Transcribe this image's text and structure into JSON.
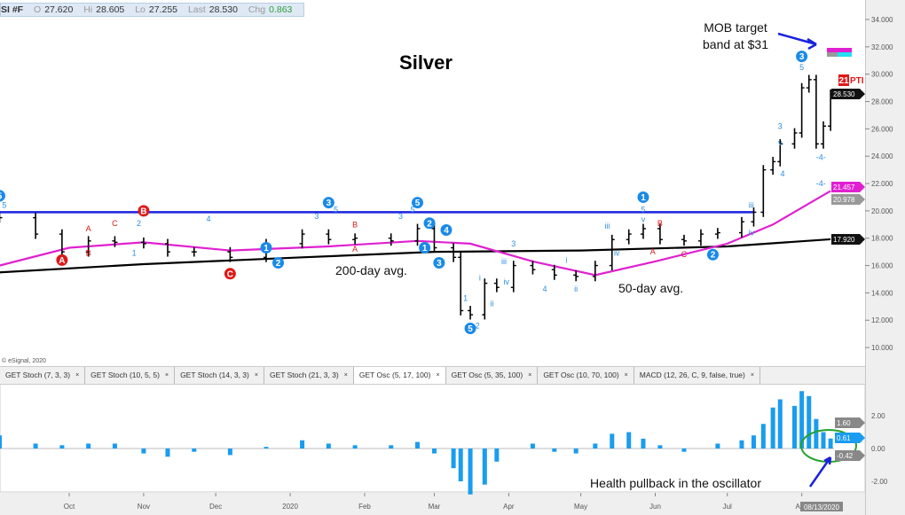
{
  "header": {
    "symbol": "SI #F",
    "open_label": "O",
    "open": "27.620",
    "high_label": "Hi",
    "high": "28.605",
    "low_label": "Lo",
    "low": "27.255",
    "last_label": "Last",
    "last": "28.530",
    "chg_label": "Chg",
    "chg": "0.863",
    "chg_color": "#2e9e3a"
  },
  "tabs": [
    {
      "label": "GET Stoch (7, 3, 3)"
    },
    {
      "label": "GET Stoch (10, 5, 5)"
    },
    {
      "label": "GET Stoch (14, 3, 3)"
    },
    {
      "label": "GET Stoch (21, 3, 3)"
    },
    {
      "label": "GET Osc (5, 17, 100)",
      "active": true
    },
    {
      "label": "GET Osc (5, 35, 100)"
    },
    {
      "label": "GET Osc (10, 70, 100)"
    },
    {
      "label": "MACD (12, 26, C, 9, false, true)"
    }
  ],
  "tab_close": "×",
  "chart_data": [
    {
      "type": "bar",
      "subtype": "ohlc",
      "title": "Silver",
      "ylim": [
        10,
        34
      ],
      "grid": false,
      "y_ticks": [
        "34.000",
        "32.000",
        "30.000",
        "28.000",
        "26.000",
        "24.000",
        "22.000",
        "20.000",
        "18.000",
        "16.000",
        "14.000",
        "12.000",
        "10.000"
      ],
      "x_ticks": [
        {
          "label": "Oct",
          "date": "2019-10-01"
        },
        {
          "label": "Nov",
          "date": "2019-11-01"
        },
        {
          "label": "Dec",
          "date": "2019-12-01"
        },
        {
          "label": "2020",
          "date": "2020-01-01"
        },
        {
          "label": "Feb",
          "date": "2020-02-01"
        },
        {
          "label": "Mar",
          "date": "2020-03-01"
        },
        {
          "label": "Apr",
          "date": "2020-04-01"
        },
        {
          "label": "May",
          "date": "2020-05-01"
        },
        {
          "label": "Jun",
          "date": "2020-06-01"
        },
        {
          "label": "Jul",
          "date": "2020-07-01"
        },
        {
          "label": "Aug",
          "date": "2020-08-01"
        }
      ],
      "last_date_label": "08/13/2020",
      "x": [
        "2019-09-02",
        "2019-09-17",
        "2019-09-28",
        "2019-10-09",
        "2019-10-20",
        "2019-11-01",
        "2019-11-11",
        "2019-11-22",
        "2019-12-07",
        "2019-12-22",
        "2020-01-06",
        "2020-01-17",
        "2020-01-28",
        "2020-02-12",
        "2020-02-23",
        "2020-03-01",
        "2020-03-09",
        "2020-03-12",
        "2020-03-16",
        "2020-03-22",
        "2020-03-27",
        "2020-04-03",
        "2020-04-11",
        "2020-04-20",
        "2020-04-29",
        "2020-05-07",
        "2020-05-14",
        "2020-05-21",
        "2020-05-27",
        "2020-06-03",
        "2020-06-13",
        "2020-06-20",
        "2020-06-27",
        "2020-07-07",
        "2020-07-12",
        "2020-07-16",
        "2020-07-20",
        "2020-07-23",
        "2020-07-29",
        "2020-08-01",
        "2020-08-04",
        "2020-08-07",
        "2020-08-10",
        "2020-08-13"
      ],
      "close": [
        19.5,
        18.3,
        17.0,
        17.8,
        17.7,
        17.6,
        17.0,
        17.0,
        16.6,
        17.6,
        18.3,
        17.9,
        18.0,
        17.8,
        18.7,
        17.3,
        16.6,
        12.7,
        12.4,
        14.7,
        14.4,
        16.0,
        15.7,
        15.3,
        15.2,
        16.0,
        17.9,
        18.3,
        18.7,
        17.9,
        17.8,
        18.3,
        18.4,
        19.2,
        19.9,
        23.0,
        23.6,
        24.9,
        25.7,
        29.0,
        29.6,
        24.9,
        26.2,
        28.53
      ],
      "series": [
        {
          "name": "200-day avg.",
          "color": "#000000",
          "x": [
            "2019-09-02",
            "2019-11-01",
            "2020-01-06",
            "2020-03-01",
            "2020-05-01",
            "2020-07-01",
            "2020-08-13"
          ],
          "values": [
            15.5,
            16.1,
            16.6,
            17.0,
            17.1,
            17.4,
            17.92
          ]
        },
        {
          "name": "50-day avg.",
          "color": "#e020d0",
          "x": [
            "2019-09-02",
            "2019-10-01",
            "2019-11-01",
            "2019-12-07",
            "2020-01-17",
            "2020-02-23",
            "2020-03-16",
            "2020-04-11",
            "2020-05-07",
            "2020-06-01",
            "2020-07-01",
            "2020-07-20",
            "2020-08-13"
          ],
          "values": [
            16.0,
            17.3,
            17.7,
            17.1,
            17.4,
            17.8,
            17.6,
            16.3,
            15.3,
            16.3,
            17.6,
            19.0,
            21.457
          ]
        }
      ],
      "horizontal_line": {
        "value": 19.9,
        "from": "2019-09-02",
        "to": "2020-07-12",
        "color": "#1a22dd"
      },
      "price_tags": [
        {
          "value": "28.530",
          "color": "#111111"
        },
        {
          "value": "21.457",
          "color": "#e020d0"
        },
        {
          "value": "20.978",
          "color": "#999999"
        },
        {
          "value": "17.920",
          "color": "#111111"
        }
      ],
      "wave_labels": [
        {
          "text": "5",
          "date": "2019-09-02",
          "price": 21.1,
          "style": "circle-blue"
        },
        {
          "text": "B",
          "date": "2019-11-01",
          "price": 20.0,
          "style": "circle-red"
        },
        {
          "text": "A",
          "date": "2019-09-28",
          "price": 16.4,
          "style": "circle-red"
        },
        {
          "text": "C",
          "date": "2019-12-07",
          "price": 15.4,
          "style": "circle-red"
        },
        {
          "text": "1",
          "date": "2019-12-22",
          "price": 17.3,
          "style": "circle-blue"
        },
        {
          "text": "2",
          "date": "2019-12-27",
          "price": 16.2,
          "style": "circle-blue"
        },
        {
          "text": "3",
          "date": "2020-01-17",
          "price": 20.6,
          "style": "circle-blue"
        },
        {
          "text": "5",
          "date": "2020-02-23",
          "price": 20.6,
          "style": "circle-blue"
        },
        {
          "text": "2",
          "date": "2020-02-28",
          "price": 19.1,
          "style": "circle-blue"
        },
        {
          "text": "1",
          "date": "2020-02-26",
          "price": 17.3,
          "style": "circle-blue"
        },
        {
          "text": "3",
          "date": "2020-03-03",
          "price": 16.2,
          "style": "circle-blue"
        },
        {
          "text": "4",
          "date": "2020-03-06",
          "price": 18.6,
          "style": "circle-blue"
        },
        {
          "text": "5",
          "date": "2020-03-16",
          "price": 11.4,
          "style": "circle-blue"
        },
        {
          "text": "1",
          "date": "2020-05-27",
          "price": 21.0,
          "style": "circle-blue"
        },
        {
          "text": "2",
          "date": "2020-06-25",
          "price": 16.8,
          "style": "circle-blue"
        },
        {
          "text": "3",
          "date": "2020-08-01",
          "price": 31.3,
          "style": "circle-blue"
        },
        {
          "text": "A",
          "date": "2019-10-09",
          "price": 18.7,
          "style": "text-red"
        },
        {
          "text": "C",
          "date": "2019-10-20",
          "price": 19.1,
          "style": "text-red"
        },
        {
          "text": "B",
          "date": "2019-10-09",
          "price": 16.9,
          "style": "text-red"
        },
        {
          "text": "A",
          "date": "2020-01-28",
          "price": 17.2,
          "style": "text-red"
        },
        {
          "text": "B",
          "date": "2020-01-28",
          "price": 19.0,
          "style": "text-red"
        },
        {
          "text": "B",
          "date": "2020-06-03",
          "price": 19.1,
          "style": "text-red"
        },
        {
          "text": "A",
          "date": "2020-05-31",
          "price": 17.0,
          "style": "text-red"
        },
        {
          "text": "C",
          "date": "2020-06-13",
          "price": 16.8,
          "style": "text-red"
        },
        {
          "text": "1",
          "date": "2019-10-28",
          "price": 16.9,
          "style": "text-blue"
        },
        {
          "text": "2",
          "date": "2019-10-30",
          "price": 19.1,
          "style": "text-blue"
        },
        {
          "text": "4",
          "date": "2019-11-28",
          "price": 19.4,
          "style": "text-blue"
        },
        {
          "text": "3",
          "date": "2020-01-12",
          "price": 19.6,
          "style": "text-blue"
        },
        {
          "text": "3",
          "date": "2020-02-16",
          "price": 19.6,
          "style": "text-blue"
        },
        {
          "text": "5",
          "date": "2020-01-20",
          "price": 20.1,
          "style": "text-blue"
        },
        {
          "text": "5",
          "date": "2020-02-21",
          "price": 20.1,
          "style": "text-blue"
        },
        {
          "text": "5",
          "date": "2019-09-04",
          "price": 20.4,
          "style": "text-blue"
        },
        {
          "text": "1",
          "date": "2020-03-14",
          "price": 13.6,
          "style": "text-blue"
        },
        {
          "text": "2",
          "date": "2020-03-19",
          "price": 11.6,
          "style": "text-blue"
        },
        {
          "text": "i",
          "date": "2020-03-20",
          "price": 15.1,
          "style": "text-blue"
        },
        {
          "text": "ii",
          "date": "2020-03-25",
          "price": 13.2,
          "style": "text-blue"
        },
        {
          "text": "iii",
          "date": "2020-03-30",
          "price": 16.3,
          "style": "text-blue"
        },
        {
          "text": "iv",
          "date": "2020-03-31",
          "price": 14.8,
          "style": "text-blue"
        },
        {
          "text": "3",
          "date": "2020-04-03",
          "price": 17.6,
          "style": "text-blue"
        },
        {
          "text": "4",
          "date": "2020-04-16",
          "price": 14.3,
          "style": "text-blue"
        },
        {
          "text": "i",
          "date": "2020-04-25",
          "price": 16.4,
          "style": "text-blue"
        },
        {
          "text": "ii",
          "date": "2020-04-29",
          "price": 14.3,
          "style": "text-blue"
        },
        {
          "text": "iii",
          "date": "2020-05-12",
          "price": 18.9,
          "style": "text-blue"
        },
        {
          "text": "iv",
          "date": "2020-05-16",
          "price": 16.9,
          "style": "text-blue"
        },
        {
          "text": "5",
          "date": "2020-05-27",
          "price": 20.1,
          "style": "text-blue"
        },
        {
          "text": "v",
          "date": "2020-05-27",
          "price": 19.5,
          "style": "text-blue"
        },
        {
          "text": "iii",
          "date": "2020-07-11",
          "price": 20.4,
          "style": "text-blue"
        },
        {
          "text": "iv",
          "date": "2020-07-11",
          "price": 18.4,
          "style": "text-blue"
        },
        {
          "text": "3",
          "date": "2020-07-23",
          "price": 26.2,
          "style": "text-blue"
        },
        {
          "text": "v",
          "date": "2020-07-23",
          "price": 25.0,
          "style": "text-blue"
        },
        {
          "text": "4",
          "date": "2020-07-24",
          "price": 22.7,
          "style": "text-blue"
        },
        {
          "text": "5",
          "date": "2020-08-01",
          "price": 30.5,
          "style": "text-blue"
        },
        {
          "text": "-4-",
          "date": "2020-08-09",
          "price": 23.9,
          "style": "text-blue"
        },
        {
          "text": "-4-",
          "date": "2020-08-09",
          "price": 22.0,
          "style": "text-blue"
        }
      ],
      "annotations": {
        "target": "MOB target",
        "target2": "band at $31",
        "ma200": "200-day avg.",
        "ma50": "50-day avg.",
        "pti": "21",
        "pti_suffix": "PTI",
        "copyright": "© eSignal, 2020"
      },
      "target_band": {
        "upper_color": "#e020d0",
        "lower_left_color": "#999999",
        "lower_right_color": "#22e0f0",
        "price": 31.5
      }
    },
    {
      "type": "bar",
      "title": "",
      "indicator": "GET Osc (5, 17, 100)",
      "ylim": [
        -3,
        3.8
      ],
      "y_ticks": [
        "2.00",
        "0.00",
        "-2.00"
      ],
      "x": [
        "2019-09-02",
        "2019-09-17",
        "2019-09-28",
        "2019-10-09",
        "2019-10-20",
        "2019-11-01",
        "2019-11-11",
        "2019-11-22",
        "2019-12-07",
        "2019-12-22",
        "2020-01-06",
        "2020-01-17",
        "2020-01-28",
        "2020-02-12",
        "2020-02-23",
        "2020-03-01",
        "2020-03-09",
        "2020-03-12",
        "2020-03-16",
        "2020-03-22",
        "2020-03-27",
        "2020-04-03",
        "2020-04-11",
        "2020-04-20",
        "2020-04-29",
        "2020-05-07",
        "2020-05-14",
        "2020-05-21",
        "2020-05-27",
        "2020-06-03",
        "2020-06-13",
        "2020-06-20",
        "2020-06-27",
        "2020-07-07",
        "2020-07-12",
        "2020-07-16",
        "2020-07-20",
        "2020-07-23",
        "2020-07-29",
        "2020-08-01",
        "2020-08-04",
        "2020-08-07",
        "2020-08-10",
        "2020-08-13"
      ],
      "values": [
        0.8,
        0.3,
        0.2,
        0.3,
        0.3,
        -0.3,
        -0.5,
        -0.2,
        -0.4,
        0.1,
        0.5,
        0.3,
        0.2,
        0.2,
        0.4,
        -0.3,
        -1.2,
        -2.0,
        -2.8,
        -2.2,
        -0.8,
        0.0,
        0.3,
        -0.2,
        -0.3,
        0.3,
        0.9,
        1.0,
        0.6,
        0.2,
        -0.2,
        0.0,
        0.3,
        0.5,
        0.8,
        1.5,
        2.5,
        3.0,
        2.6,
        3.5,
        3.2,
        1.8,
        1.0,
        0.61
      ],
      "value_tags": [
        {
          "value": "1.60",
          "color": "#888888"
        },
        {
          "value": "0.61",
          "color": "#1a9cf0"
        },
        {
          "value": "-0.42",
          "color": "#888888"
        }
      ],
      "annotation": "Health pullback in the oscillator",
      "bar_color": "#1a9cf0"
    }
  ]
}
